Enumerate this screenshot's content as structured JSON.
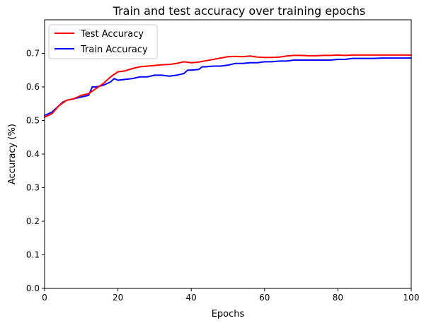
{
  "chart_data": {
    "type": "line",
    "title": "Train and test accuracy over training epochs",
    "xlabel": "Epochs",
    "ylabel": "Accuracy (%)",
    "xlim": [
      0,
      100
    ],
    "ylim": [
      0,
      0.8
    ],
    "xticks": [
      0,
      20,
      40,
      60,
      80,
      100
    ],
    "xtick_labels": [
      "0",
      "20",
      "40",
      "60",
      "80",
      "100"
    ],
    "yticks": [
      0.0,
      0.1,
      0.2,
      0.3,
      0.4,
      0.5,
      0.6,
      0.7
    ],
    "ytick_labels": [
      "0.0",
      "0.1",
      "0.2",
      "0.3",
      "0.4",
      "0.5",
      "0.6",
      "0.7"
    ],
    "grid": false,
    "legend_position": "top-left",
    "series": [
      {
        "name": "Test Accuracy",
        "color": "#ff0000",
        "x": [
          0,
          2,
          4,
          6,
          8,
          10,
          12,
          14,
          16,
          18,
          20,
          22,
          24,
          26,
          28,
          30,
          32,
          34,
          36,
          38,
          40,
          42,
          44,
          46,
          48,
          50,
          52,
          54,
          56,
          58,
          60,
          62,
          64,
          66,
          68,
          70,
          72,
          74,
          76,
          78,
          80,
          82,
          84,
          86,
          88,
          90,
          92,
          94,
          96,
          98,
          100
        ],
        "values": [
          0.51,
          0.52,
          0.545,
          0.56,
          0.565,
          0.575,
          0.58,
          0.595,
          0.61,
          0.63,
          0.645,
          0.648,
          0.655,
          0.66,
          0.662,
          0.664,
          0.666,
          0.667,
          0.67,
          0.675,
          0.672,
          0.674,
          0.678,
          0.682,
          0.686,
          0.69,
          0.691,
          0.69,
          0.692,
          0.689,
          0.688,
          0.688,
          0.689,
          0.692,
          0.694,
          0.694,
          0.693,
          0.693,
          0.694,
          0.694,
          0.695,
          0.694,
          0.695,
          0.695,
          0.695,
          0.695,
          0.695,
          0.695,
          0.695,
          0.695,
          0.695
        ]
      },
      {
        "name": "Train Accuracy",
        "color": "#0000ff",
        "x": [
          0,
          2,
          4,
          5,
          6,
          8,
          10,
          12,
          13,
          14,
          16,
          18,
          19,
          20,
          24,
          26,
          28,
          30,
          32,
          34,
          36,
          38,
          39,
          40,
          42,
          43,
          44,
          46,
          48,
          50,
          52,
          54,
          56,
          58,
          60,
          62,
          64,
          66,
          68,
          70,
          72,
          74,
          76,
          78,
          80,
          82,
          84,
          86,
          88,
          90,
          92,
          94,
          96,
          98,
          100
        ],
        "values": [
          0.515,
          0.525,
          0.545,
          0.555,
          0.56,
          0.565,
          0.57,
          0.575,
          0.6,
          0.6,
          0.605,
          0.615,
          0.625,
          0.62,
          0.625,
          0.63,
          0.63,
          0.635,
          0.635,
          0.632,
          0.635,
          0.64,
          0.65,
          0.65,
          0.652,
          0.66,
          0.66,
          0.662,
          0.662,
          0.665,
          0.67,
          0.67,
          0.672,
          0.672,
          0.675,
          0.675,
          0.677,
          0.677,
          0.68,
          0.68,
          0.68,
          0.68,
          0.68,
          0.68,
          0.682,
          0.682,
          0.685,
          0.685,
          0.685,
          0.685,
          0.686,
          0.686,
          0.686,
          0.686,
          0.686
        ]
      }
    ]
  }
}
